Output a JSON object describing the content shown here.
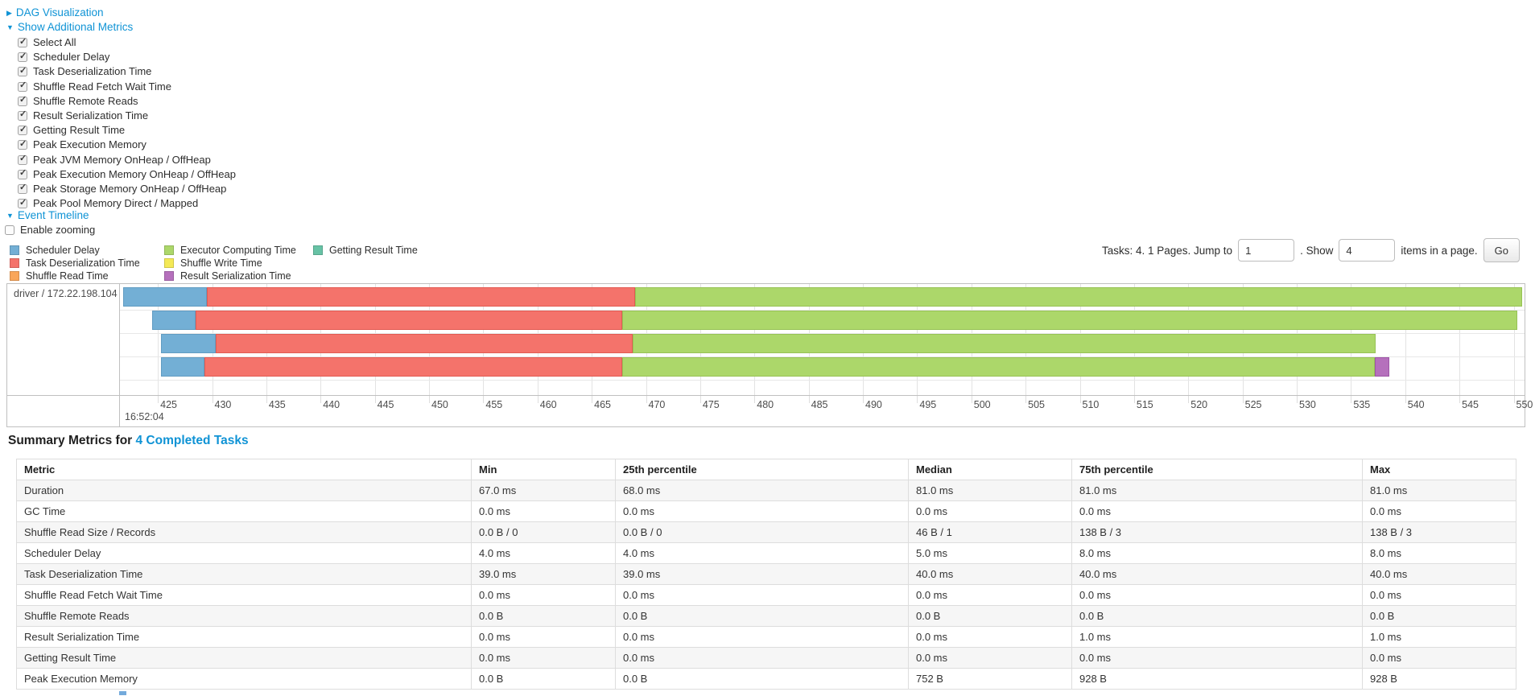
{
  "controls": {
    "dag_toggle": {
      "label": "DAG Visualization",
      "state": "collapsed"
    },
    "metrics_toggle": {
      "label": "Show Additional Metrics",
      "state": "expanded"
    },
    "metrics_checkboxes": [
      {
        "label": "Select All",
        "checked": true
      },
      {
        "label": "Scheduler Delay",
        "checked": true
      },
      {
        "label": "Task Deserialization Time",
        "checked": true
      },
      {
        "label": "Shuffle Read Fetch Wait Time",
        "checked": true
      },
      {
        "label": "Shuffle Remote Reads",
        "checked": true
      },
      {
        "label": "Result Serialization Time",
        "checked": true
      },
      {
        "label": "Getting Result Time",
        "checked": true
      },
      {
        "label": "Peak Execution Memory",
        "checked": true
      },
      {
        "label": "Peak JVM Memory OnHeap / OffHeap",
        "checked": true
      },
      {
        "label": "Peak Execution Memory OnHeap / OffHeap",
        "checked": true
      },
      {
        "label": "Peak Storage Memory OnHeap / OffHeap",
        "checked": true
      },
      {
        "label": "Peak Pool Memory Direct / Mapped",
        "checked": true
      }
    ],
    "event_timeline_toggle": {
      "label": "Event Timeline",
      "state": "expanded"
    },
    "enable_zooming": {
      "label": "Enable zooming",
      "checked": false
    }
  },
  "legend": {
    "columns": [
      [
        {
          "label": "Scheduler Delay",
          "metric": "scheduler_delay"
        },
        {
          "label": "Task Deserialization Time",
          "metric": "task_deserialization"
        },
        {
          "label": "Shuffle Read Time",
          "metric": "shuffle_read"
        }
      ],
      [
        {
          "label": "Executor Computing Time",
          "metric": "executor_computing"
        },
        {
          "label": "Shuffle Write Time",
          "metric": "shuffle_write"
        },
        {
          "label": "Result Serialization Time",
          "metric": "result_serialization"
        }
      ],
      [
        {
          "label": "Getting Result Time",
          "metric": "getting_result"
        }
      ]
    ]
  },
  "pagination": {
    "prefix": "Tasks: 4. 1 Pages. Jump to",
    "jump_value": "1",
    "mid": ". Show",
    "show_value": "4",
    "suffix": "items in a page.",
    "go_label": "Go"
  },
  "chart_data": {
    "type": "timeline",
    "row_label": "driver / 172.22.198.104",
    "axis": {
      "min": 421.5,
      "max": 551.0,
      "unit": "ms within second 16:52:04",
      "tick_step": 5,
      "ticks": [
        "425",
        "430",
        "435",
        "440",
        "445",
        "450",
        "455",
        "460",
        "465",
        "470",
        "475",
        "480",
        "485",
        "490",
        "495",
        "500",
        "505",
        "510",
        "515",
        "520",
        "525",
        "530",
        "535",
        "540",
        "545",
        "550"
      ],
      "major_label": "16:52:04"
    },
    "colors": {
      "scheduler_delay": {
        "fill": "#73AFD5",
        "border": "#619CC2"
      },
      "task_deserialization": {
        "fill": "#F4736B",
        "border": "#E25A52"
      },
      "shuffle_read": {
        "fill": "#F9A65A",
        "border": "#E8954A"
      },
      "executor_computing": {
        "fill": "#ACD76A",
        "border": "#97C255"
      },
      "shuffle_write": {
        "fill": "#F4E956",
        "border": "#DFD545"
      },
      "result_serialization": {
        "fill": "#B570BC",
        "border": "#9D55A6"
      },
      "getting_result": {
        "fill": "#67C2A5",
        "border": "#55B093"
      }
    },
    "tasks": [
      {
        "segments": [
          {
            "metric": "scheduler_delay",
            "start": 421.8,
            "end": 429.5
          },
          {
            "metric": "task_deserialization",
            "start": 429.5,
            "end": 469.0
          },
          {
            "metric": "executor_computing",
            "start": 469.0,
            "end": 550.8
          }
        ]
      },
      {
        "segments": [
          {
            "metric": "scheduler_delay",
            "start": 424.5,
            "end": 428.5
          },
          {
            "metric": "task_deserialization",
            "start": 428.5,
            "end": 467.8
          },
          {
            "metric": "executor_computing",
            "start": 467.8,
            "end": 550.3
          }
        ]
      },
      {
        "segments": [
          {
            "metric": "scheduler_delay",
            "start": 425.3,
            "end": 430.3
          },
          {
            "metric": "task_deserialization",
            "start": 430.3,
            "end": 468.8
          },
          {
            "metric": "executor_computing",
            "start": 468.8,
            "end": 537.3
          }
        ]
      },
      {
        "segments": [
          {
            "metric": "scheduler_delay",
            "start": 425.3,
            "end": 429.3
          },
          {
            "metric": "task_deserialization",
            "start": 429.3,
            "end": 467.8
          },
          {
            "metric": "executor_computing",
            "start": 467.8,
            "end": 537.2
          },
          {
            "metric": "result_serialization",
            "start": 537.2,
            "end": 538.5
          }
        ]
      }
    ]
  },
  "summary": {
    "title_prefix": "Summary Metrics for ",
    "title_link": "4 Completed Tasks"
  },
  "summary_table": {
    "headers": [
      "Metric",
      "Min",
      "25th percentile",
      "Median",
      "75th percentile",
      "Max"
    ],
    "rows": [
      [
        "Duration",
        "67.0 ms",
        "68.0 ms",
        "81.0 ms",
        "81.0 ms",
        "81.0 ms"
      ],
      [
        "GC Time",
        "0.0 ms",
        "0.0 ms",
        "0.0 ms",
        "0.0 ms",
        "0.0 ms"
      ],
      [
        "Shuffle Read Size / Records",
        "0.0 B / 0",
        "0.0 B / 0",
        "46 B / 1",
        "138 B / 3",
        "138 B / 3"
      ],
      [
        "Scheduler Delay",
        "4.0 ms",
        "4.0 ms",
        "5.0 ms",
        "8.0 ms",
        "8.0 ms"
      ],
      [
        "Task Deserialization Time",
        "39.0 ms",
        "39.0 ms",
        "40.0 ms",
        "40.0 ms",
        "40.0 ms"
      ],
      [
        "Shuffle Read Fetch Wait Time",
        "0.0 ms",
        "0.0 ms",
        "0.0 ms",
        "0.0 ms",
        "0.0 ms"
      ],
      [
        "Shuffle Remote Reads",
        "0.0 B",
        "0.0 B",
        "0.0 B",
        "0.0 B",
        "0.0 B"
      ],
      [
        "Result Serialization Time",
        "0.0 ms",
        "0.0 ms",
        "0.0 ms",
        "1.0 ms",
        "1.0 ms"
      ],
      [
        "Getting Result Time",
        "0.0 ms",
        "0.0 ms",
        "0.0 ms",
        "0.0 ms",
        "0.0 ms"
      ],
      [
        "Peak Execution Memory",
        "0.0 B",
        "0.0 B",
        "752 B",
        "928 B",
        "928 B"
      ]
    ]
  }
}
